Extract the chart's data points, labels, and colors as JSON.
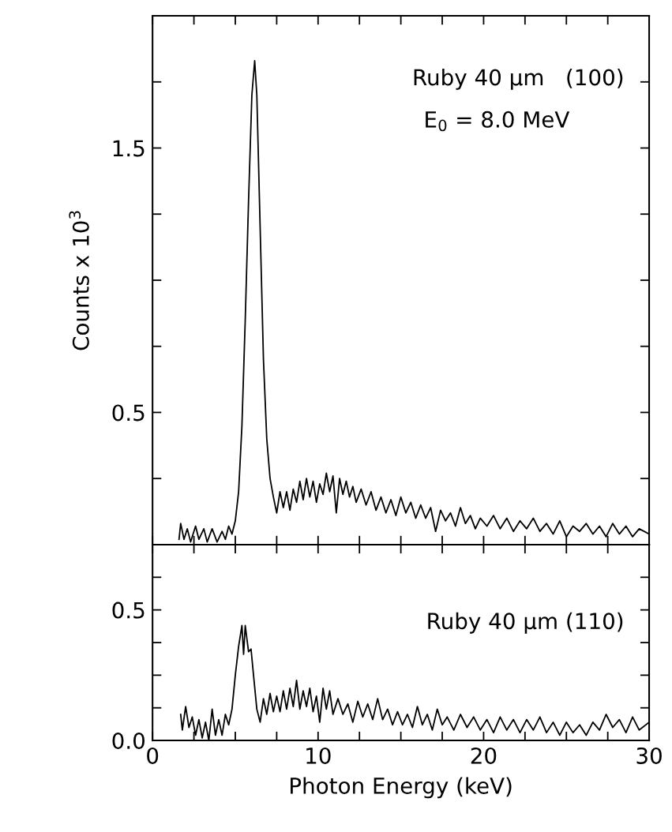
{
  "chart_data": [
    {
      "type": "line",
      "ylabel": "Counts x 10$^{3}$",
      "annotations": [
        "Ruby 40 μm   (100)",
        "E$_{0}$ = 8.0 MeV"
      ],
      "tick_labels": "y",
      "grid": false,
      "legend": false,
      "xlim": [
        0,
        30
      ],
      "xticks": [
        {
          "value": 0,
          "label": null
        },
        {
          "value": 2.5,
          "label": null
        },
        {
          "value": 5,
          "label": null
        },
        {
          "value": 7.5,
          "label": null
        },
        {
          "value": 10,
          "label": null
        },
        {
          "value": 12.5,
          "label": null
        },
        {
          "value": 15,
          "label": null
        },
        {
          "value": 17.5,
          "label": null
        },
        {
          "value": 20,
          "label": null
        },
        {
          "value": 22.5,
          "label": null
        },
        {
          "value": 25,
          "label": null
        },
        {
          "value": 27.5,
          "label": null
        },
        {
          "value": 30,
          "label": null
        }
      ],
      "ylim": [
        0,
        2.0
      ],
      "yticks": [
        {
          "value": 0.25,
          "label": null
        },
        {
          "value": 0.5,
          "label": "0.5"
        },
        {
          "value": 0.75,
          "label": null
        },
        {
          "value": 1.0,
          "label": null
        },
        {
          "value": 1.25,
          "label": null
        },
        {
          "value": 1.5,
          "label": "1.5"
        },
        {
          "value": 1.75,
          "label": null
        }
      ],
      "series": [
        {
          "color": "#000000",
          "x": [
            1.6,
            1.7,
            1.9,
            2.1,
            2.3,
            2.6,
            2.8,
            3.1,
            3.3,
            3.6,
            3.9,
            4.2,
            4.4,
            4.6,
            4.8,
            5.0,
            5.2,
            5.4,
            5.6,
            5.8,
            6.0,
            6.17,
            6.3,
            6.5,
            6.7,
            6.9,
            7.1,
            7.3,
            7.5,
            7.7,
            7.9,
            8.1,
            8.3,
            8.5,
            8.7,
            8.9,
            9.1,
            9.3,
            9.5,
            9.7,
            9.9,
            10.1,
            10.3,
            10.5,
            10.7,
            10.9,
            11.1,
            11.3,
            11.5,
            11.7,
            11.9,
            12.1,
            12.3,
            12.6,
            12.9,
            13.2,
            13.5,
            13.8,
            14.1,
            14.4,
            14.7,
            15.0,
            15.3,
            15.6,
            15.9,
            16.2,
            16.5,
            16.8,
            17.1,
            17.4,
            17.7,
            18.0,
            18.3,
            18.6,
            18.9,
            19.2,
            19.5,
            19.8,
            20.2,
            20.6,
            21.0,
            21.4,
            21.8,
            22.2,
            22.6,
            23.0,
            23.4,
            23.8,
            24.2,
            24.6,
            25.0,
            25.4,
            25.8,
            26.2,
            26.6,
            27.0,
            27.4,
            27.8,
            28.2,
            28.6,
            29.0,
            29.4,
            30.0
          ],
          "values": [
            0.02,
            0.08,
            0.02,
            0.06,
            0.01,
            0.07,
            0.02,
            0.06,
            0.01,
            0.06,
            0.01,
            0.05,
            0.02,
            0.07,
            0.04,
            0.09,
            0.2,
            0.45,
            0.85,
            1.3,
            1.7,
            1.83,
            1.7,
            1.2,
            0.7,
            0.4,
            0.25,
            0.18,
            0.12,
            0.2,
            0.14,
            0.2,
            0.13,
            0.21,
            0.16,
            0.24,
            0.17,
            0.25,
            0.18,
            0.24,
            0.16,
            0.23,
            0.19,
            0.27,
            0.2,
            0.26,
            0.12,
            0.25,
            0.19,
            0.24,
            0.18,
            0.22,
            0.16,
            0.21,
            0.15,
            0.2,
            0.13,
            0.18,
            0.12,
            0.17,
            0.11,
            0.18,
            0.12,
            0.16,
            0.1,
            0.15,
            0.1,
            0.14,
            0.05,
            0.13,
            0.09,
            0.12,
            0.07,
            0.14,
            0.08,
            0.11,
            0.06,
            0.1,
            0.07,
            0.11,
            0.06,
            0.1,
            0.05,
            0.09,
            0.06,
            0.1,
            0.05,
            0.08,
            0.04,
            0.09,
            0.03,
            0.07,
            0.05,
            0.08,
            0.04,
            0.07,
            0.03,
            0.08,
            0.04,
            0.07,
            0.03,
            0.06,
            0.04
          ]
        }
      ]
    },
    {
      "type": "line",
      "xlabel": "Photon Energy (keV)",
      "annotations": [
        "Ruby 40 μm (110)"
      ],
      "grid": false,
      "legend": false,
      "xlim": [
        0,
        30
      ],
      "xticks": [
        0,
        {
          "value": 2.5,
          "label": null
        },
        {
          "value": 5,
          "label": null
        },
        {
          "value": 7.5,
          "label": null
        },
        10,
        {
          "value": 12.5,
          "label": null
        },
        {
          "value": 15,
          "label": null
        },
        {
          "value": 17.5,
          "label": null
        },
        20,
        {
          "value": 22.5,
          "label": null
        },
        {
          "value": 25,
          "label": null
        },
        {
          "value": 27.5,
          "label": null
        },
        30
      ],
      "ylim": [
        0,
        0.75
      ],
      "yticks": [
        {
          "value": 0,
          "label": "0.0"
        },
        {
          "value": 0.125,
          "label": null
        },
        {
          "value": 0.25,
          "label": null
        },
        {
          "value": 0.375,
          "label": null
        },
        0.5,
        {
          "value": 0.625,
          "label": null
        }
      ],
      "series": [
        {
          "color": "#000000",
          "x": [
            1.7,
            1.8,
            2.0,
            2.2,
            2.4,
            2.6,
            2.8,
            3.0,
            3.2,
            3.4,
            3.6,
            3.8,
            4.0,
            4.2,
            4.4,
            4.6,
            4.8,
            5.0,
            5.2,
            5.4,
            5.5,
            5.6,
            5.8,
            5.95,
            6.1,
            6.3,
            6.5,
            6.7,
            6.9,
            7.1,
            7.3,
            7.5,
            7.7,
            7.9,
            8.1,
            8.3,
            8.5,
            8.7,
            8.9,
            9.1,
            9.3,
            9.5,
            9.7,
            9.9,
            10.1,
            10.3,
            10.5,
            10.7,
            10.9,
            11.2,
            11.5,
            11.8,
            12.1,
            12.4,
            12.7,
            13.0,
            13.3,
            13.6,
            13.9,
            14.2,
            14.5,
            14.8,
            15.1,
            15.4,
            15.7,
            16.0,
            16.3,
            16.6,
            16.9,
            17.2,
            17.5,
            17.8,
            18.2,
            18.6,
            19.0,
            19.4,
            19.8,
            20.2,
            20.6,
            21.0,
            21.4,
            21.8,
            22.2,
            22.6,
            23.0,
            23.4,
            23.8,
            24.2,
            24.6,
            25.0,
            25.4,
            25.8,
            26.2,
            26.6,
            27.0,
            27.4,
            27.8,
            28.2,
            28.6,
            29.0,
            29.4,
            30.0
          ],
          "values": [
            0.1,
            0.04,
            0.13,
            0.05,
            0.09,
            0.02,
            0.08,
            0.01,
            0.07,
            0.0,
            0.12,
            0.02,
            0.08,
            0.02,
            0.1,
            0.06,
            0.12,
            0.25,
            0.36,
            0.44,
            0.33,
            0.44,
            0.34,
            0.35,
            0.25,
            0.12,
            0.07,
            0.16,
            0.1,
            0.18,
            0.11,
            0.17,
            0.11,
            0.19,
            0.12,
            0.2,
            0.13,
            0.23,
            0.12,
            0.19,
            0.13,
            0.2,
            0.11,
            0.17,
            0.07,
            0.2,
            0.12,
            0.19,
            0.1,
            0.16,
            0.1,
            0.14,
            0.07,
            0.15,
            0.09,
            0.14,
            0.08,
            0.16,
            0.08,
            0.12,
            0.06,
            0.11,
            0.06,
            0.1,
            0.05,
            0.13,
            0.06,
            0.1,
            0.04,
            0.12,
            0.06,
            0.09,
            0.04,
            0.1,
            0.05,
            0.09,
            0.04,
            0.08,
            0.03,
            0.09,
            0.04,
            0.08,
            0.03,
            0.08,
            0.04,
            0.09,
            0.03,
            0.07,
            0.02,
            0.07,
            0.03,
            0.06,
            0.02,
            0.07,
            0.04,
            0.1,
            0.05,
            0.08,
            0.03,
            0.09,
            0.04,
            0.07
          ]
        }
      ]
    }
  ]
}
